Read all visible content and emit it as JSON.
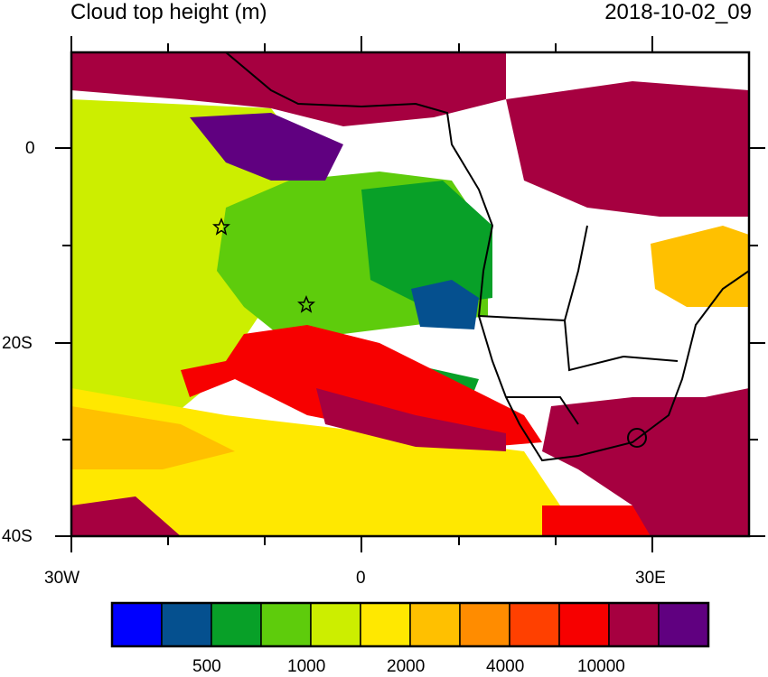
{
  "title": "Cloud top height (m)",
  "datetime": "2018-10-02_09",
  "lon_labels": [
    "30W",
    "0",
    "30E"
  ],
  "lat_labels": [
    "0",
    "20S",
    "40S"
  ],
  "colorbar": {
    "colors": [
      "#0000FF",
      "#05508F",
      "#08A028",
      "#5ECC0C",
      "#CCEE00",
      "#FFE800",
      "#FFC000",
      "#FF8C00",
      "#FF4000",
      "#F70000",
      "#A60040",
      "#600080"
    ],
    "labels": [
      "500",
      "1000",
      "2000",
      "4000",
      "10000"
    ]
  },
  "map": {
    "extent_lon": [
      -30,
      40
    ],
    "extent_lat": [
      -40,
      10
    ],
    "markers": [
      {
        "symbol": "star",
        "lon": -14.5,
        "lat": -8
      },
      {
        "symbol": "star",
        "lon": -5.7,
        "lat": -16
      }
    ]
  }
}
